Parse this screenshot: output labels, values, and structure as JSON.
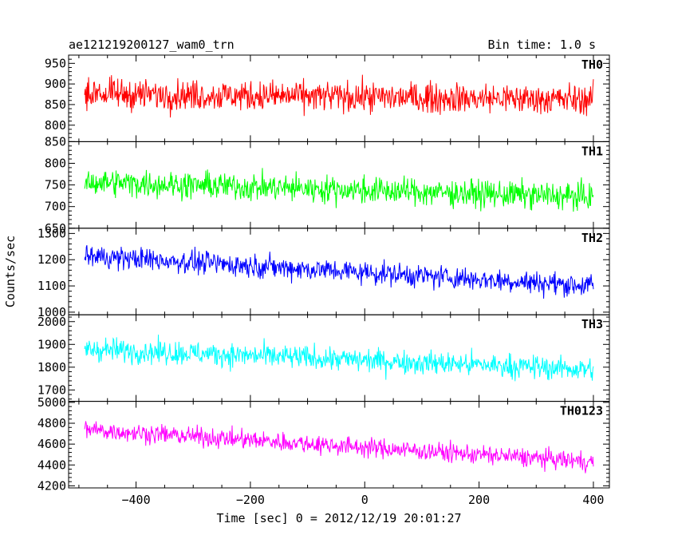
{
  "header": {
    "title": "ae121219200127_wam0_trn",
    "bin_time": "Bin time: 1.0 s"
  },
  "chart_data": {
    "type": "line",
    "xlabel": "Time [sec] 0 = 2012/12/19 20:01:27",
    "ylabel": "Counts/sec",
    "xlim": [
      -518,
      428
    ],
    "x_ticks": [
      -400,
      -200,
      0,
      200,
      400
    ],
    "x_tick_labels": [
      "−400",
      "−200",
      "0",
      "200",
      "400"
    ],
    "x_range": [
      -490,
      400
    ],
    "bin_seconds": 1.0,
    "grid": false,
    "legend": "none",
    "panels": [
      {
        "name": "TH0",
        "color": "#ff0000",
        "ylim": [
          760,
          970
        ],
        "y_ticks": [
          800,
          850,
          900,
          950
        ],
        "y_tick_labels": [
          "800",
          "850",
          "900",
          "950"
        ],
        "trend_start": 876,
        "trend_end": 862,
        "noise_amplitude": 42
      },
      {
        "name": "TH1",
        "color": "#00ff00",
        "ylim": [
          650,
          850
        ],
        "y_ticks": [
          650,
          700,
          750,
          800,
          850
        ],
        "y_tick_labels": [
          "650",
          "700",
          "750",
          "800",
          "850"
        ],
        "trend_start": 757,
        "trend_end": 722,
        "noise_amplitude": 36
      },
      {
        "name": "TH2",
        "color": "#0000ff",
        "ylim": [
          990,
          1320
        ],
        "y_ticks": [
          1000,
          1100,
          1200,
          1300
        ],
        "y_tick_labels": [
          "1000",
          "1100",
          "1200",
          "1300"
        ],
        "trend_start": 1215,
        "trend_end": 1100,
        "noise_amplitude": 50
      },
      {
        "name": "TH3",
        "color": "#00ffff",
        "ylim": [
          1650,
          2030
        ],
        "y_ticks": [
          1700,
          1800,
          1900,
          2000
        ],
        "y_tick_labels": [
          "1700",
          "1800",
          "1900",
          "2000"
        ],
        "trend_start": 1880,
        "trend_end": 1790,
        "noise_amplitude": 60
      },
      {
        "name": "TH0123",
        "color": "#ff00ff",
        "ylim": [
          4180,
          5010
        ],
        "y_ticks": [
          4200,
          4400,
          4600,
          4800,
          5000
        ],
        "y_tick_labels": [
          "4200",
          "4400",
          "4600",
          "4800",
          "5000"
        ],
        "trend_start": 4740,
        "trend_end": 4430,
        "noise_amplitude": 105
      }
    ]
  }
}
